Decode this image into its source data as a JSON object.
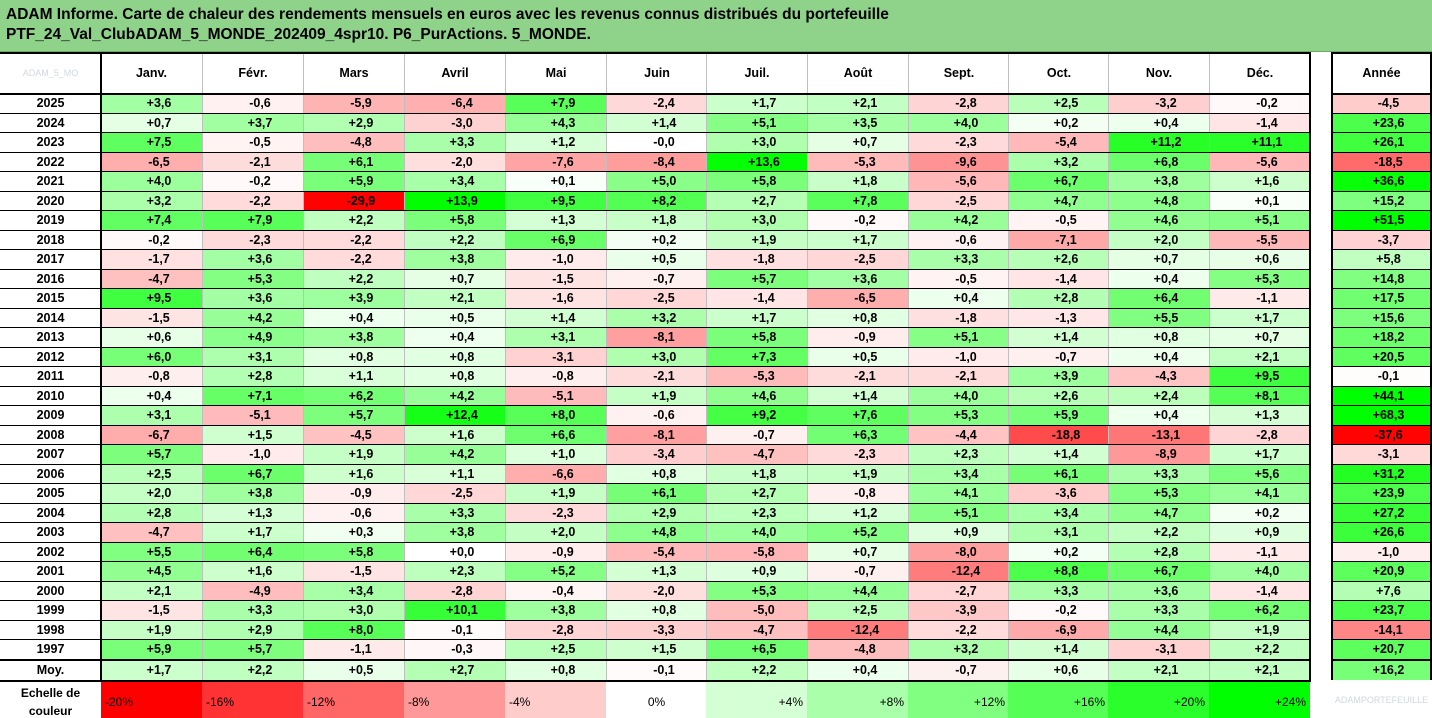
{
  "title": {
    "line1": "ADAM Informe. Carte de chaleur des rendements mensuels en euros avec les revenus connus distribués du portefeuille",
    "line2": "PTF_24_Val_ClubADAM_5_MONDE_202409_4spr10. P6_PurActions. 5_MONDE."
  },
  "corner_label": "ADAM_5_MO",
  "watermark": "ADAMPORTEFEUILLE",
  "chart_data": {
    "type": "heatmap",
    "months": [
      "Janv.",
      "Févr.",
      "Mars",
      "Avril",
      "Mai",
      "Juin",
      "Juil.",
      "Août",
      "Sept.",
      "Oct.",
      "Nov.",
      "Déc."
    ],
    "year_col_label": "Année",
    "rows": [
      {
        "year": "2025",
        "m": [
          "+3,6",
          "-0,6",
          "-5,9",
          "-6,4",
          "+7,9",
          "-2,4",
          "+1,7",
          "+2,1",
          "-2,8",
          "+2,5",
          "-3,2",
          "-0,2"
        ],
        "y": "-4,5"
      },
      {
        "year": "2024",
        "m": [
          "+0,7",
          "+3,7",
          "+2,9",
          "-3,0",
          "+4,3",
          "+1,4",
          "+5,1",
          "+3,5",
          "+4,0",
          "+0,2",
          "+0,4",
          "-1,4"
        ],
        "y": "+23,6"
      },
      {
        "year": "2023",
        "m": [
          "+7,5",
          "-0,5",
          "-4,8",
          "+3,3",
          "+1,2",
          "-0,0",
          "+3,0",
          "+0,7",
          "-2,3",
          "-5,4",
          "+11,2",
          "+11,1"
        ],
        "y": "+26,1"
      },
      {
        "year": "2022",
        "m": [
          "-6,5",
          "-2,1",
          "+6,1",
          "-2,0",
          "-7,6",
          "-8,4",
          "+13,6",
          "-5,3",
          "-9,6",
          "+3,2",
          "+6,8",
          "-5,6"
        ],
        "y": "-18,5"
      },
      {
        "year": "2021",
        "m": [
          "+4,0",
          "-0,2",
          "+5,9",
          "+3,4",
          "+0,1",
          "+5,0",
          "+5,8",
          "+1,8",
          "-5,6",
          "+6,7",
          "+3,8",
          "+1,6"
        ],
        "y": "+36,6"
      },
      {
        "year": "2020",
        "m": [
          "+3,2",
          "-2,2",
          "-29,9",
          "+13,9",
          "+9,5",
          "+8,2",
          "+2,7",
          "+7,8",
          "-2,5",
          "+4,7",
          "+4,8",
          "+0,1"
        ],
        "y": "+15,2"
      },
      {
        "year": "2019",
        "m": [
          "+7,4",
          "+7,9",
          "+2,2",
          "+5,8",
          "+1,3",
          "+1,8",
          "+3,0",
          "-0,2",
          "+4,2",
          "-0,5",
          "+4,6",
          "+5,1"
        ],
        "y": "+51,5"
      },
      {
        "year": "2018",
        "m": [
          "-0,2",
          "-2,3",
          "-2,2",
          "+2,2",
          "+6,9",
          "+0,2",
          "+1,9",
          "+1,7",
          "-0,6",
          "-7,1",
          "+2,0",
          "-5,5"
        ],
        "y": "-3,7"
      },
      {
        "year": "2017",
        "m": [
          "-1,7",
          "+3,6",
          "-2,2",
          "+3,8",
          "-1,0",
          "+0,5",
          "-1,8",
          "-2,5",
          "+3,3",
          "+2,6",
          "+0,7",
          "+0,6"
        ],
        "y": "+5,8"
      },
      {
        "year": "2016",
        "m": [
          "-4,7",
          "+5,3",
          "+2,2",
          "+0,7",
          "-1,5",
          "-0,7",
          "+5,7",
          "+3,6",
          "-0,5",
          "-1,4",
          "+0,4",
          "+5,3"
        ],
        "y": "+14,8"
      },
      {
        "year": "2015",
        "m": [
          "+9,5",
          "+3,6",
          "+3,9",
          "+2,1",
          "-1,6",
          "-2,5",
          "-1,4",
          "-6,5",
          "+0,4",
          "+2,8",
          "+6,4",
          "-1,1"
        ],
        "y": "+17,5"
      },
      {
        "year": "2014",
        "m": [
          "-1,5",
          "+4,2",
          "+0,4",
          "+0,5",
          "+1,4",
          "+3,2",
          "+1,7",
          "+0,8",
          "-1,8",
          "-1,3",
          "+5,5",
          "+1,7"
        ],
        "y": "+15,6"
      },
      {
        "year": "2013",
        "m": [
          "+0,6",
          "+4,9",
          "+3,8",
          "+0,4",
          "+3,1",
          "-8,1",
          "+5,8",
          "-0,9",
          "+5,1",
          "+1,4",
          "+0,8",
          "+0,7"
        ],
        "y": "+18,2"
      },
      {
        "year": "2012",
        "m": [
          "+6,0",
          "+3,1",
          "+0,8",
          "+0,8",
          "-3,1",
          "+3,0",
          "+7,3",
          "+0,5",
          "-1,0",
          "-0,7",
          "+0,4",
          "+2,1"
        ],
        "y": "+20,5"
      },
      {
        "year": "2011",
        "m": [
          "-0,8",
          "+2,8",
          "+1,1",
          "+0,8",
          "-0,8",
          "-2,1",
          "-5,3",
          "-2,1",
          "-2,1",
          "+3,9",
          "-4,3",
          "+9,5"
        ],
        "y": "-0,1"
      },
      {
        "year": "2010",
        "m": [
          "+0,4",
          "+7,1",
          "+6,2",
          "+4,2",
          "-5,1",
          "+1,9",
          "+4,6",
          "+1,4",
          "+4,0",
          "+2,6",
          "+2,4",
          "+8,1"
        ],
        "y": "+44,1"
      },
      {
        "year": "2009",
        "m": [
          "+3,1",
          "-5,1",
          "+5,7",
          "+12,4",
          "+8,0",
          "-0,6",
          "+9,2",
          "+7,6",
          "+5,3",
          "+5,9",
          "+0,4",
          "+1,3"
        ],
        "y": "+68,3"
      },
      {
        "year": "2008",
        "m": [
          "-6,7",
          "+1,5",
          "-4,5",
          "+1,6",
          "+6,6",
          "-8,1",
          "-0,7",
          "+6,3",
          "-4,4",
          "-18,8",
          "-13,1",
          "-2,8"
        ],
        "y": "-37,6"
      },
      {
        "year": "2007",
        "m": [
          "+5,7",
          "-1,0",
          "+1,9",
          "+4,2",
          "+1,0",
          "-3,4",
          "-4,7",
          "-2,3",
          "+2,3",
          "+1,4",
          "-8,9",
          "+1,7"
        ],
        "y": "-3,1"
      },
      {
        "year": "2006",
        "m": [
          "+2,5",
          "+6,7",
          "+1,6",
          "+1,1",
          "-6,6",
          "+0,8",
          "+1,8",
          "+1,9",
          "+3,4",
          "+6,1",
          "+3,3",
          "+5,6"
        ],
        "y": "+31,2"
      },
      {
        "year": "2005",
        "m": [
          "+2,0",
          "+3,8",
          "-0,9",
          "-2,5",
          "+1,9",
          "+6,1",
          "+2,7",
          "-0,8",
          "+4,1",
          "-3,6",
          "+5,3",
          "+4,1"
        ],
        "y": "+23,9"
      },
      {
        "year": "2004",
        "m": [
          "+2,8",
          "+1,3",
          "-0,6",
          "+3,3",
          "-2,3",
          "+2,9",
          "+2,3",
          "+1,2",
          "+5,1",
          "+3,4",
          "+4,7",
          "+0,2"
        ],
        "y": "+27,2"
      },
      {
        "year": "2003",
        "m": [
          "-4,7",
          "+1,7",
          "+0,3",
          "+3,8",
          "+2,0",
          "+4,8",
          "+4,0",
          "+5,2",
          "+0,9",
          "+3,1",
          "+2,2",
          "+0,9"
        ],
        "y": "+26,6"
      },
      {
        "year": "2002",
        "m": [
          "+5,5",
          "+6,4",
          "+5,8",
          "+0,0",
          "-0,9",
          "-5,4",
          "-5,8",
          "+0,7",
          "-8,0",
          "+0,2",
          "+2,8",
          "-1,1"
        ],
        "y": "-1,0"
      },
      {
        "year": "2001",
        "m": [
          "+4,5",
          "+1,6",
          "-1,5",
          "+2,3",
          "+5,2",
          "+1,3",
          "+0,9",
          "-0,7",
          "-12,4",
          "+8,8",
          "+6,7",
          "+4,0"
        ],
        "y": "+20,9"
      },
      {
        "year": "2000",
        "m": [
          "+2,1",
          "-4,9",
          "+3,4",
          "-2,8",
          "-0,4",
          "-2,0",
          "+5,3",
          "+4,4",
          "-2,7",
          "+3,3",
          "+3,6",
          "-1,4"
        ],
        "y": "+7,6"
      },
      {
        "year": "1999",
        "m": [
          "-1,5",
          "+3,3",
          "+3,0",
          "+10,1",
          "+3,8",
          "+0,8",
          "-5,0",
          "+2,5",
          "-3,9",
          "-0,2",
          "+3,3",
          "+6,2"
        ],
        "y": "+23,7"
      },
      {
        "year": "1998",
        "m": [
          "+1,9",
          "+2,9",
          "+8,0",
          "-0,1",
          "-2,8",
          "-3,3",
          "-4,7",
          "-12,4",
          "-2,2",
          "-6,9",
          "+4,4",
          "+1,9"
        ],
        "y": "-14,1"
      },
      {
        "year": "1997",
        "m": [
          "+5,9",
          "+5,7",
          "-1,1",
          "-0,3",
          "+2,5",
          "+1,5",
          "+6,5",
          "-4,8",
          "+3,2",
          "+1,4",
          "-3,1",
          "+2,2"
        ],
        "y": "+20,7"
      }
    ],
    "average": {
      "label": "Moy.",
      "m": [
        "+1,7",
        "+2,2",
        "+0,5",
        "+2,7",
        "+0,8",
        "-0,1",
        "+2,2",
        "+0,4",
        "-0,7",
        "+0,6",
        "+2,1",
        "+2,1"
      ],
      "y": "+16,2"
    },
    "scale": {
      "label_line1": "Echelle de",
      "label_line2": "couleur",
      "stops": [
        "-20%",
        "-16%",
        "-12%",
        "-8%",
        "-4%",
        "0%",
        "+4%",
        "+8%",
        "+12%",
        "+16%",
        "+20%",
        "+24%"
      ]
    },
    "colors": {
      "neg_full": "#ff0000",
      "pos_full": "#00ff00",
      "neutral": "#ffffff",
      "header_bg": "#8fd28a"
    }
  }
}
